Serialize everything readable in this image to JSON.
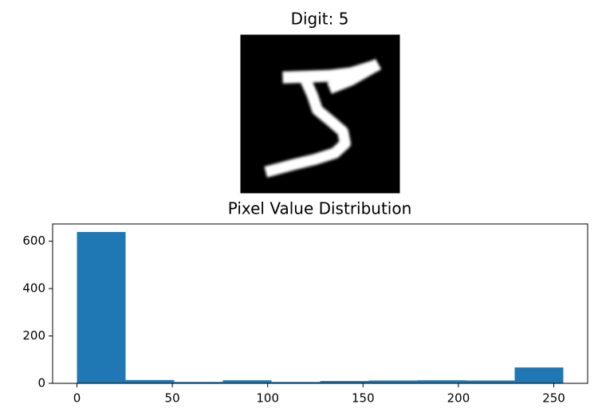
{
  "chart_data": [
    {
      "type": "image",
      "title": "Digit: 5"
    },
    {
      "type": "histogram",
      "title": "Pixel Value Distribution",
      "bins": [
        0,
        25.5,
        51,
        76.5,
        102,
        127.5,
        153,
        178.5,
        204,
        229.5,
        255
      ],
      "values": [
        639,
        14,
        6,
        13,
        6,
        10,
        12,
        13,
        12,
        67
      ],
      "color": "#1f77b4",
      "xlim": [
        -12.75,
        267.75
      ],
      "xticks": [
        0,
        50,
        100,
        150,
        200,
        250
      ],
      "ylim": [
        0,
        673
      ],
      "yticks": [
        0,
        200,
        400,
        600
      ]
    }
  ]
}
